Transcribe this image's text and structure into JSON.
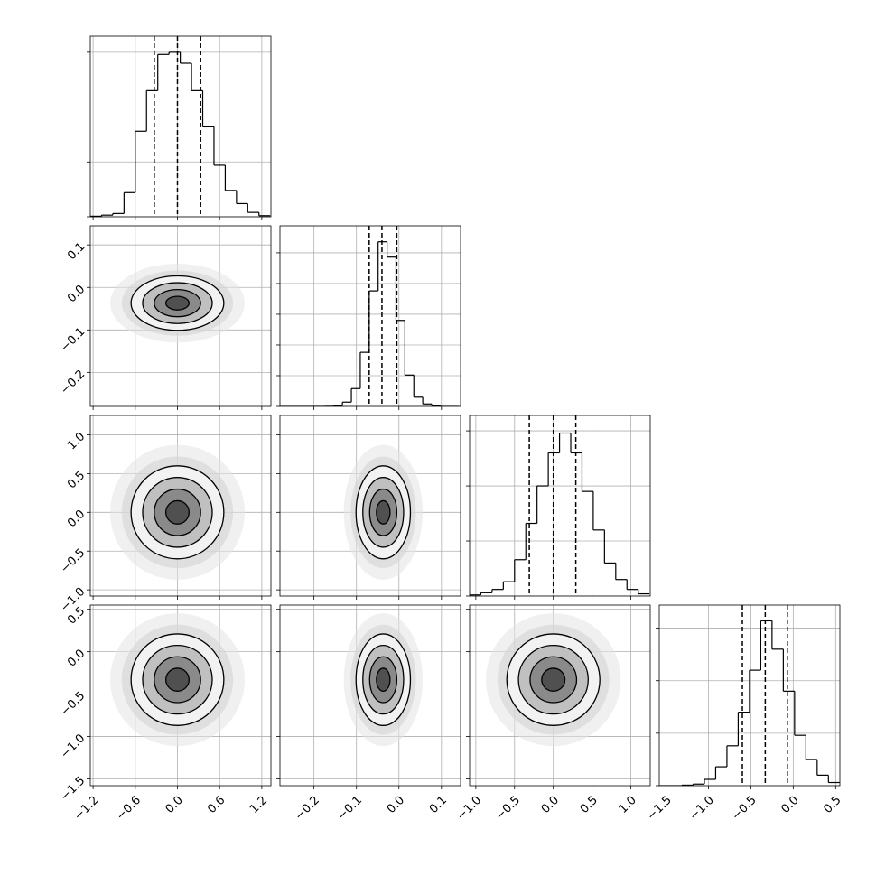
{
  "chart_data": {
    "type": "corner",
    "grid": true,
    "contour_sigmas": [
      0.5,
      1,
      1.5,
      2
    ],
    "params": [
      {
        "range": [
          -1.24,
          1.33
        ],
        "ticks": [
          {
            "value": -1.2,
            "label": "−1.2"
          },
          {
            "value": -0.6,
            "label": "−0.6"
          },
          {
            "value": 0,
            "label": "0.0"
          },
          0.6,
          1.2
        ],
        "mean": 0,
        "sd": 0.33,
        "quantiles": [
          -0.33,
          0,
          0.33
        ],
        "bins": [
          -1.24,
          -1.08,
          -0.92,
          -0.76,
          -0.6,
          -0.44,
          -0.28,
          -0.12,
          0.04,
          0.2,
          0.36,
          0.52,
          0.68,
          0.84,
          1.0,
          1.16,
          1.32
        ],
        "counts": [
          5,
          15,
          30,
          220,
          780,
          1150,
          1480,
          1500,
          1400,
          1150,
          820,
          470,
          240,
          120,
          40,
          10
        ],
        "count_lim": [
          0,
          1647
        ],
        "count_ticks": [
          0,
          500,
          1000,
          1500
        ]
      },
      {
        "range": [
          -0.28,
          0.145
        ],
        "ticks": [
          {
            "value": -0.2,
            "label": "−0.2"
          },
          {
            "value": -0.1,
            "label": "−0.1"
          },
          {
            "value": 0,
            "label": "0.0"
          },
          0.1
        ],
        "mean": -0.037,
        "sd": 0.032,
        "quantiles": [
          -0.07,
          -0.04,
          -0.005
        ],
        "bins": [
          -0.28,
          -0.259,
          -0.238,
          -0.217,
          -0.196,
          -0.175,
          -0.154,
          -0.133,
          -0.112,
          -0.091,
          -0.07,
          -0.049,
          -0.028,
          -0.007,
          0.014,
          0.035,
          0.056,
          0.077,
          0.098,
          0.119,
          0.14
        ],
        "counts": [
          0,
          0,
          0,
          0,
          0,
          2,
          10,
          70,
          290,
          880,
          1880,
          2680,
          2430,
          1400,
          510,
          150,
          40,
          10,
          0,
          0
        ],
        "count_lim": [
          0,
          2940
        ],
        "count_ticks": [
          0,
          500,
          1000,
          1500,
          2000,
          2500
        ]
      },
      {
        "range": [
          -1.08,
          1.25
        ],
        "ticks": [
          {
            "value": -1,
            "label": "−1.0"
          },
          {
            "value": -0.5,
            "label": "−0.5"
          },
          {
            "value": 0,
            "label": "0.0"
          },
          0.5,
          {
            "value": 1,
            "label": "1.0"
          }
        ],
        "mean": 0,
        "sd": 0.3,
        "quantiles": [
          -0.31,
          0,
          0.29
        ],
        "bins": [
          -1.08,
          -0.935,
          -0.79,
          -0.645,
          -0.5,
          -0.355,
          -0.21,
          -0.065,
          0.08,
          0.225,
          0.37,
          0.515,
          0.66,
          0.805,
          0.95,
          1.095,
          1.24
        ],
        "counts": [
          10,
          30,
          60,
          130,
          330,
          660,
          1000,
          1300,
          1480,
          1300,
          950,
          600,
          300,
          150,
          60,
          20
        ],
        "count_lim": [
          0,
          1640
        ],
        "count_ticks": [
          0,
          500,
          1000,
          1500
        ]
      },
      {
        "range": [
          -1.58,
          0.55
        ],
        "ticks": [
          {
            "value": -1.5,
            "label": "−1.5"
          },
          {
            "value": -1,
            "label": "−1.0"
          },
          {
            "value": -0.5,
            "label": "−0.5"
          },
          {
            "value": 0,
            "label": "0.0"
          },
          0.5
        ],
        "mean": -0.33,
        "sd": 0.27,
        "quantiles": [
          -0.6,
          -0.33,
          -0.07
        ],
        "bins": [
          -1.58,
          -1.447,
          -1.314,
          -1.181,
          -1.048,
          -0.915,
          -0.782,
          -0.649,
          -0.516,
          -0.383,
          -0.25,
          -0.117,
          0.016,
          0.149,
          0.282,
          0.415,
          0.548
        ],
        "counts": [
          0,
          0,
          5,
          15,
          60,
          180,
          380,
          700,
          1100,
          1570,
          1300,
          900,
          480,
          250,
          100,
          30
        ],
        "count_lim": [
          0,
          1720
        ],
        "count_ticks": [
          0,
          500,
          1000,
          1500
        ]
      }
    ]
  }
}
